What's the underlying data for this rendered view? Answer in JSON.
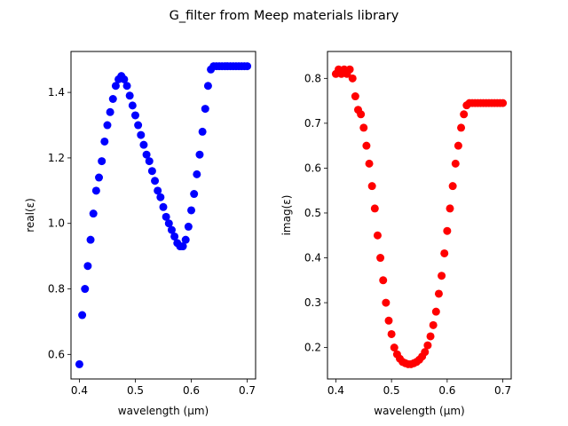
{
  "figure": {
    "title": "G_filter from Meep materials library"
  },
  "chart_data": [
    {
      "type": "scatter",
      "xlabel": "wavelength (µm)",
      "ylabel": "real(ε)",
      "xlim": [
        0.385,
        0.715
      ],
      "ylim": [
        0.525,
        1.525
      ],
      "xticks": [
        0.4,
        0.5,
        0.6,
        0.7
      ],
      "xtick_labels": [
        "0.4",
        "0.5",
        "0.6",
        "0.7"
      ],
      "yticks": [
        0.6,
        0.8,
        1.0,
        1.2,
        1.4
      ],
      "ytick_labels": [
        "0.6",
        "0.8",
        "1.0",
        "1.2",
        "1.4"
      ],
      "color": "#0000ff",
      "marker": "circle",
      "grid": false,
      "series": [
        {
          "x": [
            0.4,
            0.405,
            0.41,
            0.415,
            0.42,
            0.425,
            0.43,
            0.435,
            0.44,
            0.445,
            0.45,
            0.455,
            0.46,
            0.465,
            0.47,
            0.475,
            0.48,
            0.485,
            0.49,
            0.495,
            0.5,
            0.505,
            0.51,
            0.515,
            0.52,
            0.525,
            0.53,
            0.535,
            0.54,
            0.545,
            0.55,
            0.555,
            0.56,
            0.565,
            0.57,
            0.575,
            0.58,
            0.585,
            0.59,
            0.595,
            0.6,
            0.605,
            0.61,
            0.615,
            0.62,
            0.625,
            0.63,
            0.635,
            0.64,
            0.645,
            0.65,
            0.655,
            0.66,
            0.665,
            0.67,
            0.675,
            0.68,
            0.685,
            0.69,
            0.695,
            0.7
          ],
          "y": [
            0.57,
            0.72,
            0.8,
            0.87,
            0.95,
            1.03,
            1.1,
            1.14,
            1.19,
            1.25,
            1.3,
            1.34,
            1.38,
            1.42,
            1.44,
            1.45,
            1.44,
            1.42,
            1.39,
            1.36,
            1.33,
            1.3,
            1.27,
            1.24,
            1.21,
            1.19,
            1.16,
            1.13,
            1.1,
            1.08,
            1.05,
            1.02,
            1.0,
            0.98,
            0.96,
            0.94,
            0.93,
            0.93,
            0.95,
            0.99,
            1.04,
            1.09,
            1.15,
            1.21,
            1.28,
            1.35,
            1.42,
            1.47,
            1.48,
            1.48,
            1.48,
            1.48,
            1.48,
            1.48,
            1.48,
            1.48,
            1.48,
            1.48,
            1.48,
            1.48,
            1.48
          ]
        }
      ]
    },
    {
      "type": "scatter",
      "xlabel": "wavelength (µm)",
      "ylabel": "imag(ε)",
      "xlim": [
        0.385,
        0.715
      ],
      "ylim": [
        0.13,
        0.86
      ],
      "xticks": [
        0.4,
        0.5,
        0.6,
        0.7
      ],
      "xtick_labels": [
        "0.4",
        "0.5",
        "0.6",
        "0.7"
      ],
      "yticks": [
        0.2,
        0.3,
        0.4,
        0.5,
        0.6,
        0.7,
        0.8
      ],
      "ytick_labels": [
        "0.2",
        "0.3",
        "0.4",
        "0.5",
        "0.6",
        "0.7",
        "0.8"
      ],
      "color": "#ff0000",
      "marker": "circle",
      "grid": false,
      "series": [
        {
          "x": [
            0.4,
            0.405,
            0.41,
            0.415,
            0.42,
            0.425,
            0.43,
            0.435,
            0.44,
            0.445,
            0.45,
            0.455,
            0.46,
            0.465,
            0.47,
            0.475,
            0.48,
            0.485,
            0.49,
            0.495,
            0.5,
            0.505,
            0.51,
            0.515,
            0.52,
            0.525,
            0.53,
            0.535,
            0.54,
            0.545,
            0.55,
            0.555,
            0.56,
            0.565,
            0.57,
            0.575,
            0.58,
            0.585,
            0.59,
            0.595,
            0.6,
            0.605,
            0.61,
            0.615,
            0.62,
            0.625,
            0.63,
            0.635,
            0.64,
            0.645,
            0.65,
            0.655,
            0.66,
            0.665,
            0.67,
            0.675,
            0.68,
            0.685,
            0.69,
            0.695,
            0.7
          ],
          "y": [
            0.81,
            0.82,
            0.81,
            0.82,
            0.81,
            0.82,
            0.8,
            0.76,
            0.73,
            0.72,
            0.69,
            0.65,
            0.61,
            0.56,
            0.51,
            0.45,
            0.4,
            0.35,
            0.3,
            0.26,
            0.23,
            0.2,
            0.185,
            0.175,
            0.168,
            0.165,
            0.163,
            0.163,
            0.165,
            0.168,
            0.173,
            0.18,
            0.19,
            0.205,
            0.225,
            0.25,
            0.28,
            0.32,
            0.36,
            0.41,
            0.46,
            0.51,
            0.56,
            0.61,
            0.65,
            0.69,
            0.72,
            0.74,
            0.745,
            0.745,
            0.745,
            0.745,
            0.745,
            0.745,
            0.745,
            0.745,
            0.745,
            0.745,
            0.745,
            0.745,
            0.745
          ]
        }
      ]
    }
  ]
}
